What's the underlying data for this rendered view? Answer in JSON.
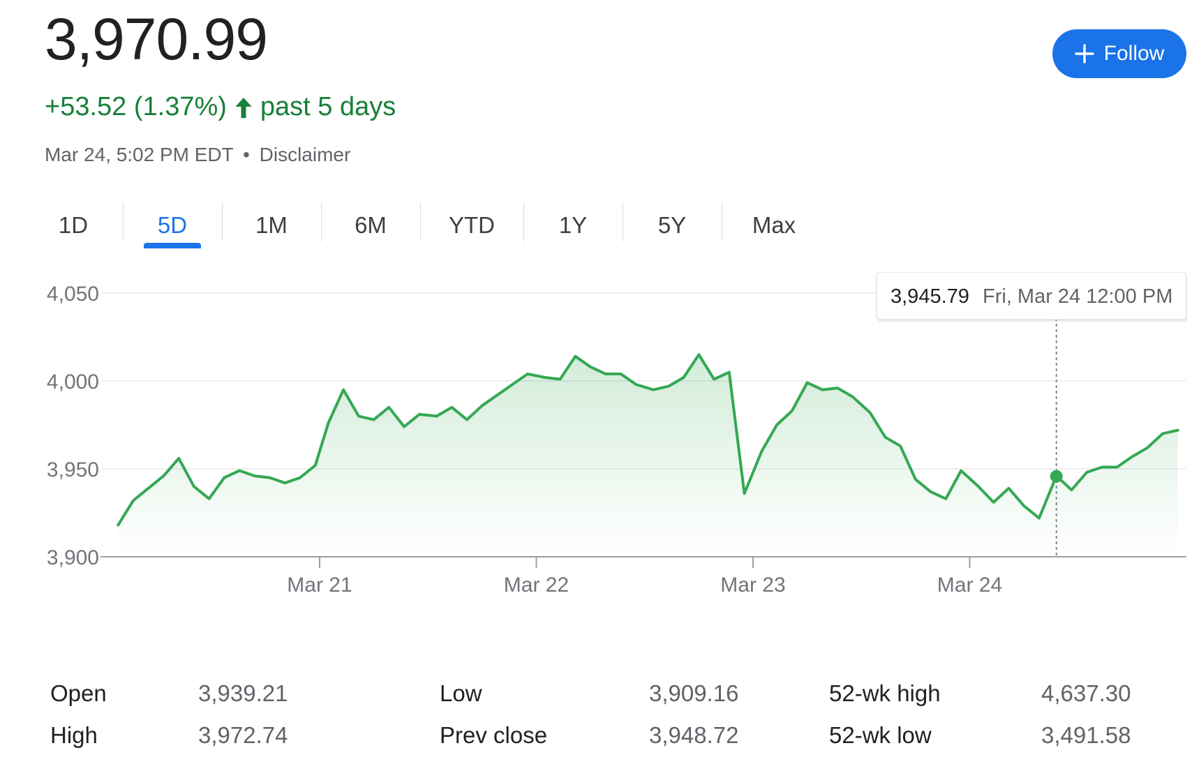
{
  "header": {
    "price": "3,970.99",
    "change": "+53.52 (1.37%)",
    "period_label": "past 5 days",
    "timestamp": "Mar 24, 5:02 PM EDT",
    "separator": "•",
    "disclaimer": "Disclaimer",
    "follow_label": "Follow",
    "accent_color": "#1a73e8",
    "positive_color": "#188038"
  },
  "tabs": [
    {
      "label": "1D",
      "active": false
    },
    {
      "label": "5D",
      "active": true
    },
    {
      "label": "1M",
      "active": false
    },
    {
      "label": "6M",
      "active": false
    },
    {
      "label": "YTD",
      "active": false
    },
    {
      "label": "1Y",
      "active": false
    },
    {
      "label": "5Y",
      "active": false
    },
    {
      "label": "Max",
      "active": false
    }
  ],
  "chart_data": {
    "type": "area",
    "title": "",
    "xlabel": "",
    "ylabel": "",
    "ylim": [
      3900,
      4050
    ],
    "yticks": [
      "4,050",
      "4,000",
      "3,950",
      "3,900"
    ],
    "ytick_values": [
      4050,
      4000,
      3950,
      3900
    ],
    "xticks": [
      "Mar 21",
      "Mar 22",
      "Mar 23",
      "Mar 24"
    ],
    "xtick_positions": [
      1,
      2,
      3,
      4
    ],
    "xlim": [
      0.05,
      5.0
    ],
    "line_color": "#34a853",
    "grid": true,
    "series": [
      {
        "x": [
          0.07,
          0.14,
          0.21,
          0.28,
          0.35,
          0.42,
          0.49,
          0.56,
          0.63,
          0.7,
          0.77,
          0.84,
          0.91,
          0.98,
          1.04,
          1.11,
          1.18,
          1.25,
          1.32,
          1.39,
          1.46,
          1.54,
          1.61,
          1.68,
          1.75,
          1.82,
          1.89,
          1.96,
          2.04,
          2.11,
          2.18,
          2.25,
          2.32,
          2.39,
          2.46,
          2.54,
          2.61,
          2.68,
          2.75,
          2.82,
          2.89,
          2.96,
          3.04,
          3.11,
          3.18,
          3.25,
          3.32,
          3.39,
          3.46,
          3.54,
          3.61,
          3.68,
          3.75,
          3.82,
          3.89,
          3.96,
          4.04,
          4.11,
          4.18,
          4.25,
          4.32,
          4.4,
          4.47,
          4.54,
          4.61,
          4.68,
          4.75,
          4.82,
          4.89,
          4.96
        ],
        "y": [
          3918,
          3932,
          3939,
          3946,
          3956,
          3940,
          3933,
          3945,
          3949,
          3946,
          3945,
          3942,
          3945,
          3952,
          3976,
          3995,
          3980,
          3978,
          3985,
          3974,
          3981,
          3980,
          3985,
          3978,
          3986,
          3992,
          3998,
          4004,
          4002,
          4001,
          4014,
          4008,
          4004,
          4004,
          3998,
          3995,
          3997,
          4002,
          4015,
          4001,
          4005,
          3936,
          3960,
          3975,
          3983,
          3999,
          3995,
          3996,
          3991,
          3982,
          3968,
          3963,
          3944,
          3937,
          3933,
          3949,
          3940,
          3931,
          3939,
          3929,
          3922,
          3946,
          3938,
          3948,
          3951,
          3951,
          3957,
          3962,
          3970,
          3972
        ]
      }
    ],
    "highlight": {
      "x": 4.4,
      "y": 3945.79,
      "value_label": "3,945.79",
      "time_label": "Fri, Mar 24 12:00 PM"
    }
  },
  "stats": [
    {
      "label": "Open",
      "value": "3,939.21"
    },
    {
      "label": "High",
      "value": "3,972.74"
    },
    {
      "label": "Low",
      "value": "3,909.16"
    },
    {
      "label": "Prev close",
      "value": "3,948.72"
    },
    {
      "label": "52-wk high",
      "value": "4,637.30"
    },
    {
      "label": "52-wk low",
      "value": "3,491.58"
    }
  ]
}
